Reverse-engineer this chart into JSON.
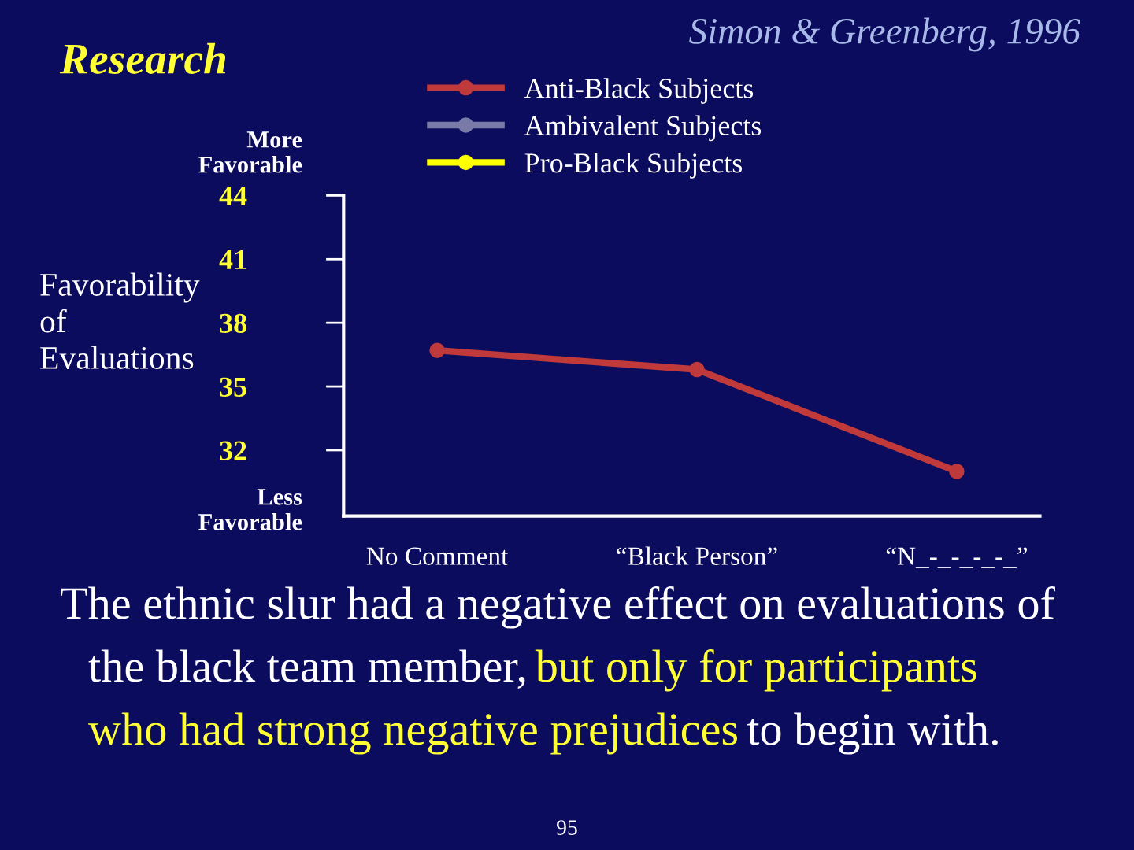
{
  "chart_data": {
    "type": "line",
    "title": "Research",
    "subtitle": "Simon & Greenberg, 1996",
    "ylabel": "Favorability of Evaluations",
    "categories": [
      "No Comment",
      "“Black Person”",
      "“N_-_-_-_-_”"
    ],
    "series": [
      {
        "name": "Anti-Black Subjects",
        "color": "#c0393b",
        "values": [
          36.7,
          35.8,
          31.0
        ]
      },
      {
        "name": "Ambivalent Subjects",
        "color": "#7a7aa8",
        "values": [
          null,
          null,
          null
        ]
      },
      {
        "name": "Pro-Black Subjects",
        "color": "#ffff00",
        "values": [
          null,
          null,
          null
        ]
      }
    ],
    "ylim": [
      28.9,
      44
    ],
    "yticks": [
      32,
      35,
      38,
      41,
      44
    ],
    "marker": "circle",
    "line_style": "solid",
    "grid": false,
    "legend": "top",
    "annotations": [
      "More Favorable",
      "Less Favorable",
      "The ethnic slur had a negative effect on evaluations of the black team member,",
      "but only for participants who had strong negative prejudices",
      "to begin with.",
      "95"
    ]
  }
}
